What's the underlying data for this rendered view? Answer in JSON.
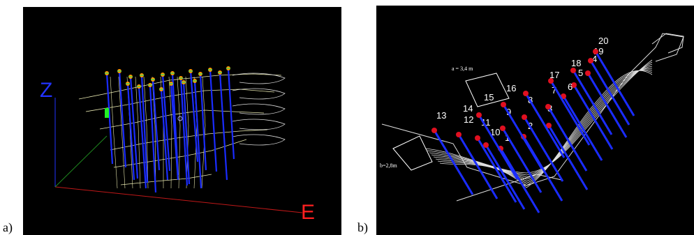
{
  "panel_a": {
    "label": "a)",
    "axis_z": "Z",
    "axis_e": "E"
  },
  "panel_b": {
    "label": "b)",
    "dimension_a": "a = 3,4 m",
    "dimension_b": "b=2,8m",
    "borehole_numbers": [
      "1",
      "2",
      "3",
      "4",
      "5",
      "6",
      "7",
      "8",
      "9",
      "10",
      "11",
      "12",
      "13",
      "14",
      "15",
      "16",
      "17",
      "18",
      "19",
      "20"
    ]
  },
  "colors": {
    "background": "#000000",
    "boreholes": "#1a2cff",
    "collar": "#e01020",
    "mesh_a": "#e8e8b0",
    "mesh_b": "#e0e0e0",
    "axis_z": "#2233ff",
    "axis_e": "#ff2020",
    "axis_third": "#1f8a1f"
  }
}
